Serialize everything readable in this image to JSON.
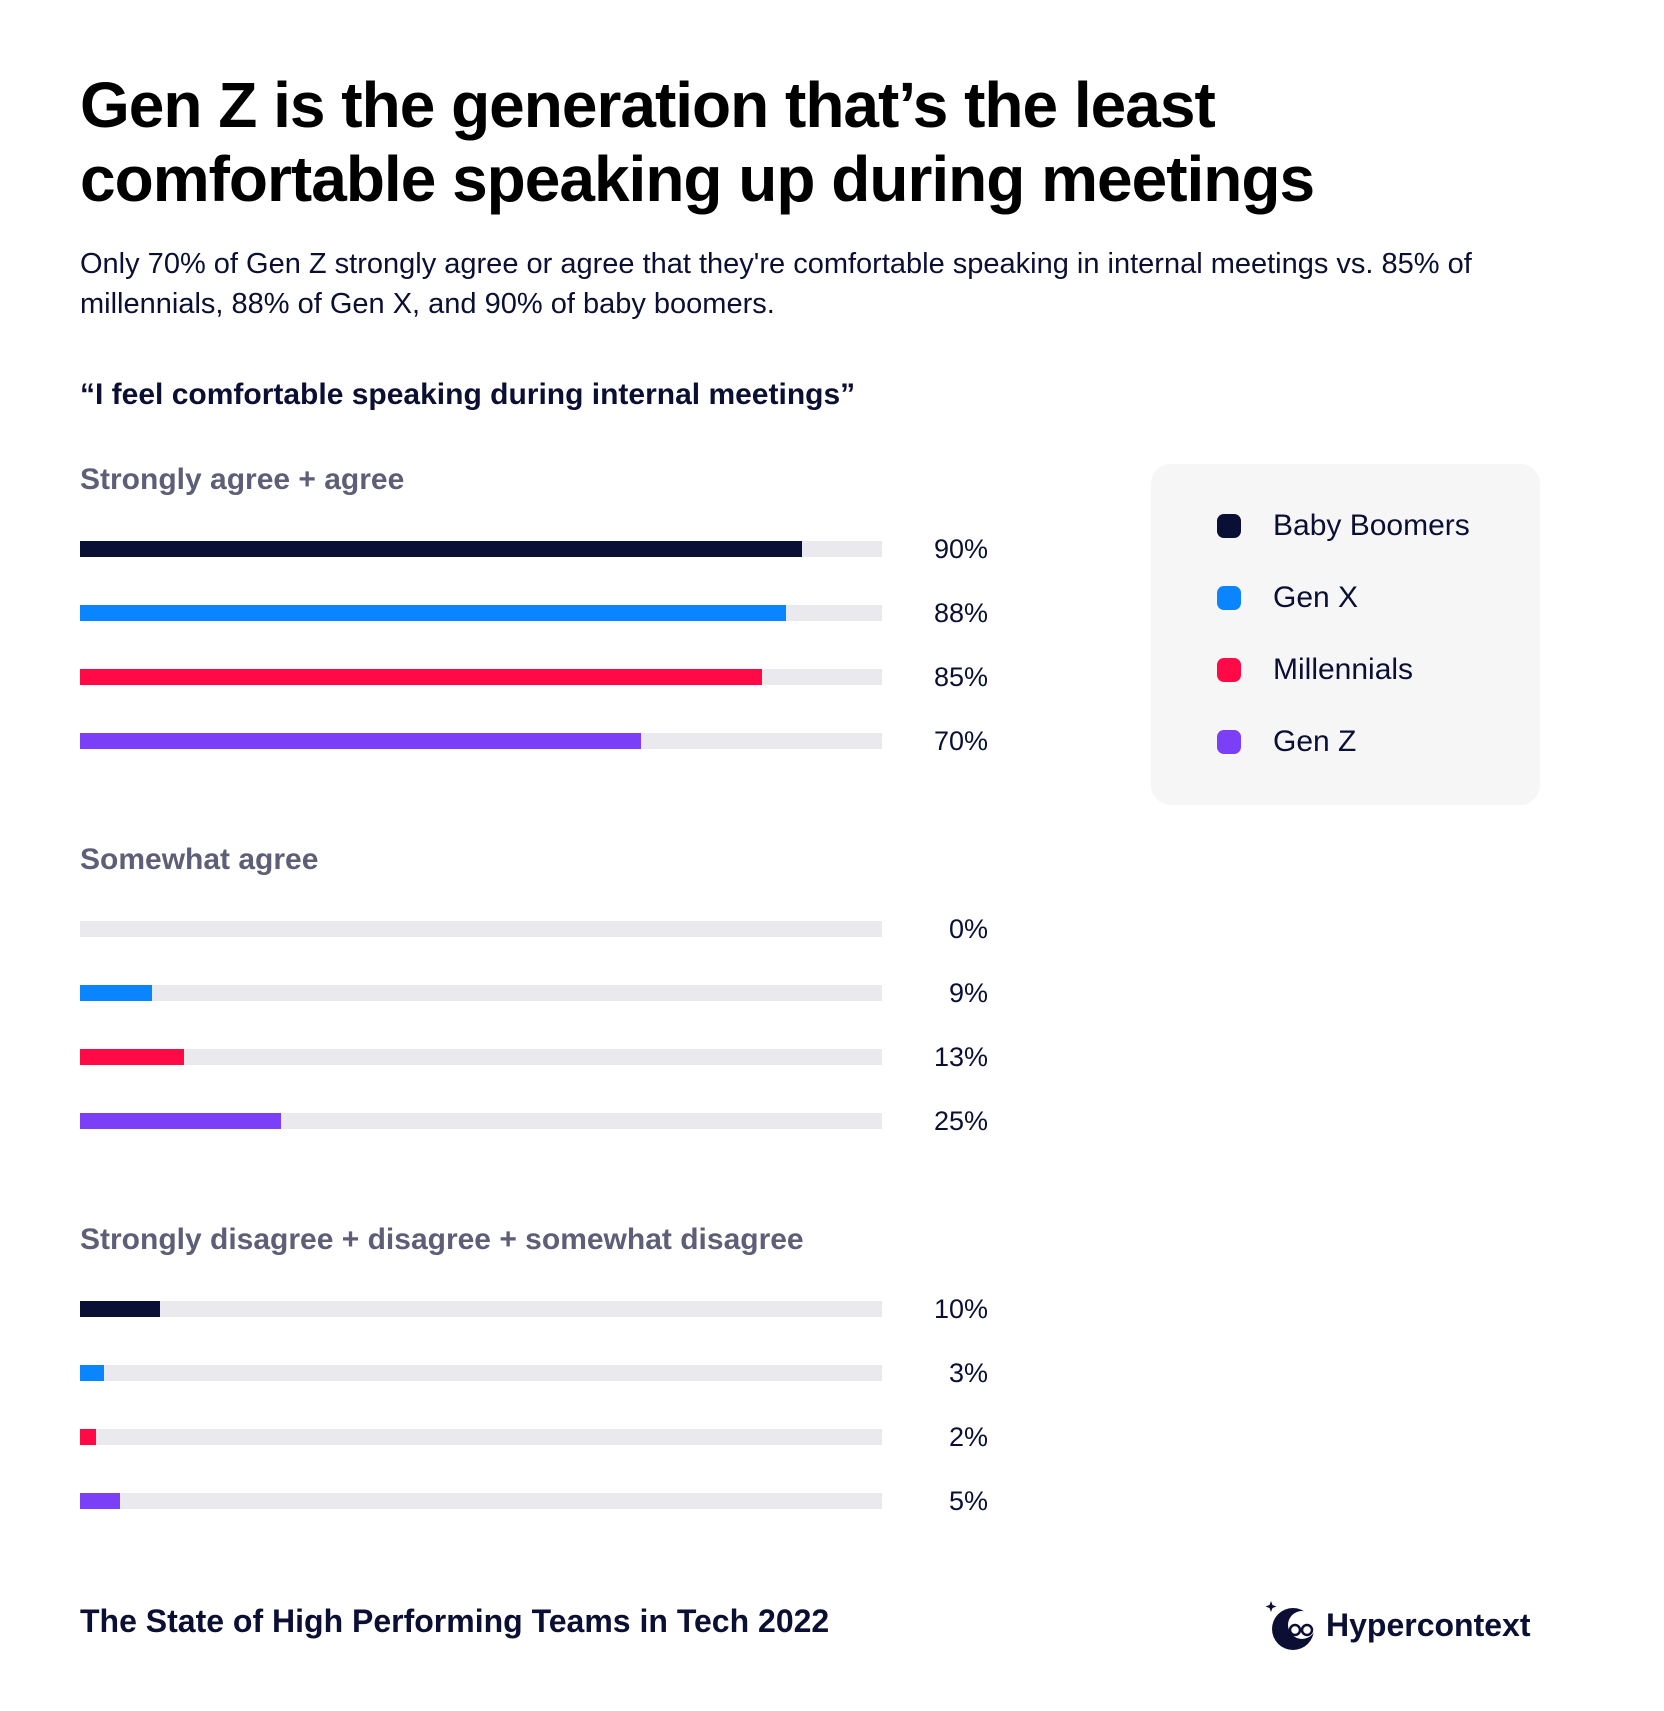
{
  "title": "Gen Z is the generation that’s the least comfortable speaking up during meetings",
  "subtitle": "Only 70% of Gen Z strongly agree or agree that they're comfortable speaking in internal meetings vs. 85% of millennials, 88% of Gen X, and 90% of baby boomers.",
  "chart_data": {
    "type": "bar",
    "orientation": "horizontal",
    "title": "“I feel comfortable speaking during internal meetings”",
    "xlim": [
      0,
      100
    ],
    "value_suffix": "%",
    "grid": false,
    "legend_position": "right",
    "legend": [
      {
        "name": "Baby Boomers",
        "color": "#0a0f35"
      },
      {
        "name": "Gen X",
        "color": "#0a84ff"
      },
      {
        "name": "Millennials",
        "color": "#ff0a47"
      },
      {
        "name": "Gen Z",
        "color": "#7b3ff7"
      }
    ],
    "groups": [
      {
        "label": "Strongly agree + agree",
        "values": [
          90,
          88,
          85,
          70
        ]
      },
      {
        "label": "Somewhat agree",
        "values": [
          0,
          9,
          13,
          25
        ]
      },
      {
        "label": "Strongly disagree + disagree + somewhat disagree",
        "values": [
          10,
          3,
          2,
          5
        ]
      }
    ]
  },
  "footer": "The State of High Performing Teams in Tech 2022",
  "brand": {
    "name": "Hypercontext",
    "icon": "hypercontext-logo-icon"
  }
}
